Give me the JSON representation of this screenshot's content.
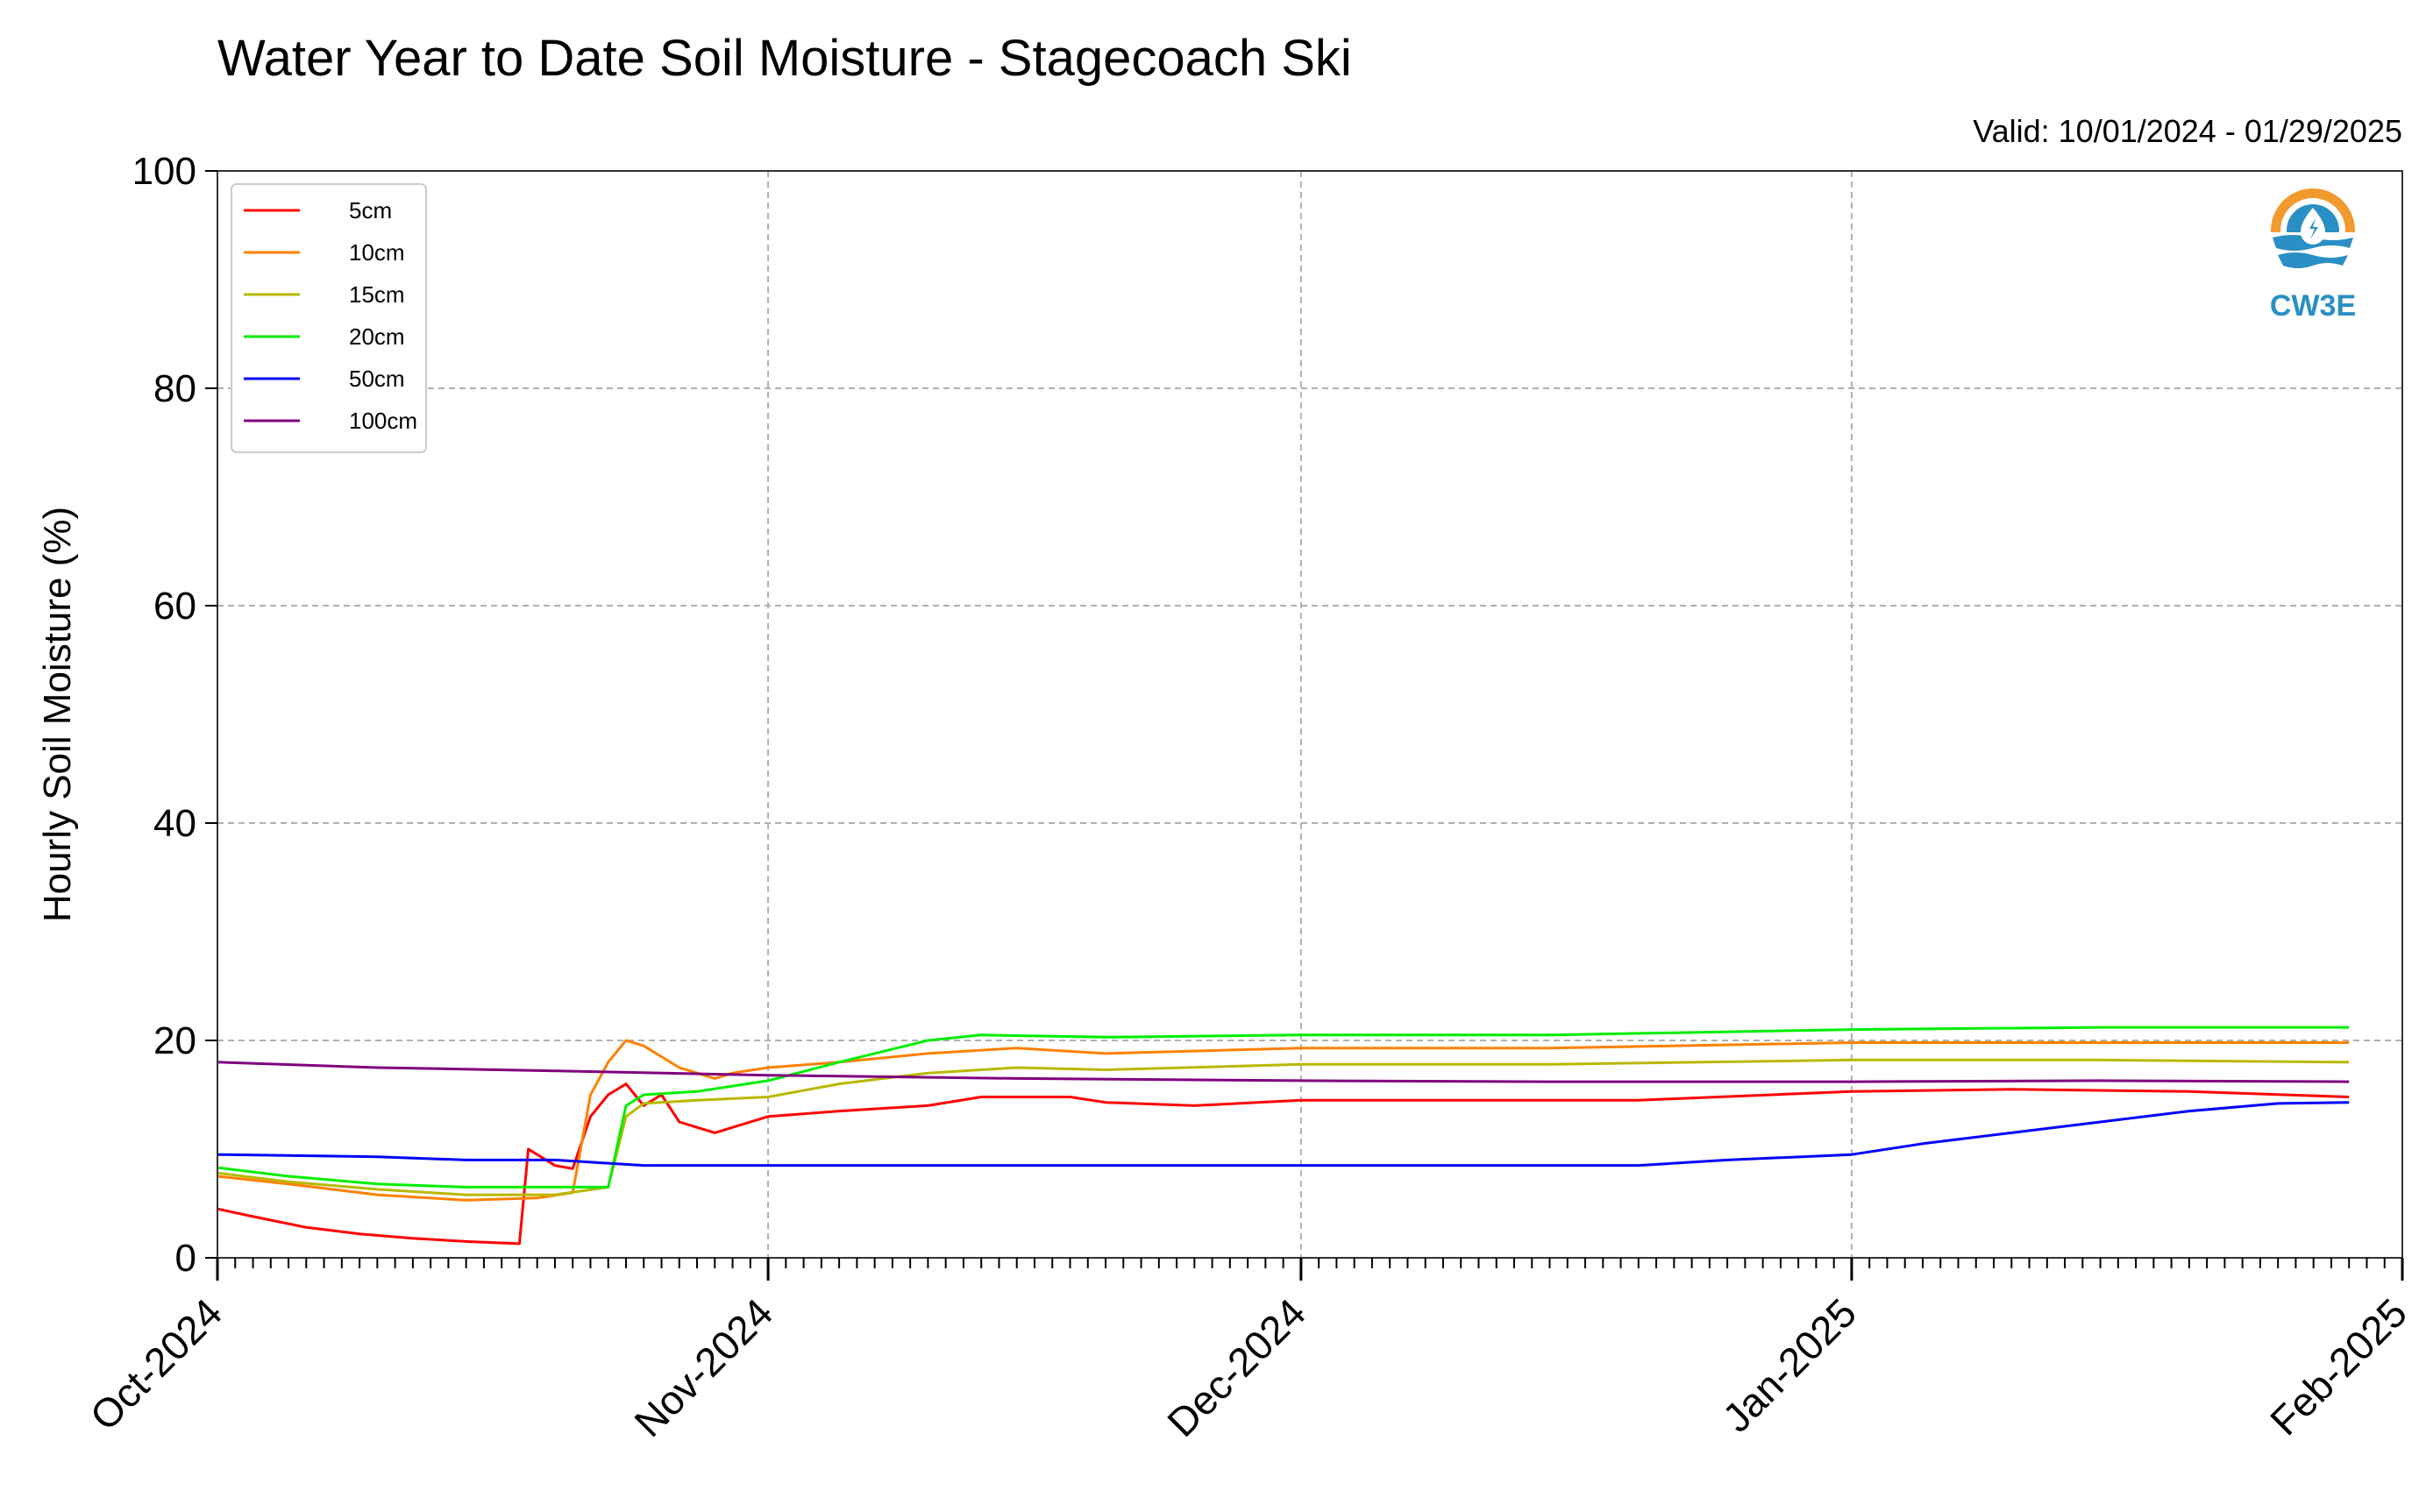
{
  "chart_data": {
    "type": "line",
    "title": "Water Year to Date Soil Moisture - Stagecoach Ski",
    "valid_text": "Valid: 10/01/2024 - 01/29/2025",
    "xlabel": "",
    "ylabel": "Hourly Soil Moisture (%)",
    "xlim": [
      "2024-10-01",
      "2025-02-01"
    ],
    "ylim": [
      0,
      100
    ],
    "yticks": [
      "0",
      "20",
      "40",
      "60",
      "80",
      "100"
    ],
    "xticks": [
      {
        "date": "2024-10-01",
        "label": "Oct-2024"
      },
      {
        "date": "2024-11-01",
        "label": "Nov-2024"
      },
      {
        "date": "2024-12-01",
        "label": "Dec-2024"
      },
      {
        "date": "2025-01-01",
        "label": "Jan-2025"
      },
      {
        "date": "2025-02-01",
        "label": "Feb-2025"
      }
    ],
    "grid": true,
    "legend_position": "top-left",
    "logo_text": "CW3E",
    "series": [
      {
        "name": "5cm",
        "color": "#ff0000",
        "points": [
          [
            "2024-10-01",
            4.5
          ],
          [
            "2024-10-03",
            3.8
          ],
          [
            "2024-10-06",
            2.8
          ],
          [
            "2024-10-09",
            2.2
          ],
          [
            "2024-10-12",
            1.8
          ],
          [
            "2024-10-15",
            1.5
          ],
          [
            "2024-10-18",
            1.3
          ],
          [
            "2024-10-18T12",
            10
          ],
          [
            "2024-10-19",
            9.5
          ],
          [
            "2024-10-20",
            8.5
          ],
          [
            "2024-10-21",
            8.2
          ],
          [
            "2024-10-22",
            13
          ],
          [
            "2024-10-23",
            15
          ],
          [
            "2024-10-24",
            16
          ],
          [
            "2024-10-25",
            14
          ],
          [
            "2024-10-26",
            15
          ],
          [
            "2024-10-27",
            12.5
          ],
          [
            "2024-10-28",
            12
          ],
          [
            "2024-10-29",
            11.5
          ],
          [
            "2024-10-30",
            12
          ],
          [
            "2024-11-01",
            13
          ],
          [
            "2024-11-05",
            13.5
          ],
          [
            "2024-11-10",
            14
          ],
          [
            "2024-11-13",
            14.8
          ],
          [
            "2024-11-18",
            14.8
          ],
          [
            "2024-11-20",
            14.3
          ],
          [
            "2024-11-25",
            14
          ],
          [
            "2024-12-01",
            14.5
          ],
          [
            "2024-12-10",
            14.5
          ],
          [
            "2024-12-20",
            14.5
          ],
          [
            "2025-01-01",
            15.3
          ],
          [
            "2025-01-10",
            15.5
          ],
          [
            "2025-01-20",
            15.3
          ],
          [
            "2025-01-29",
            14.8
          ]
        ]
      },
      {
        "name": "10cm",
        "color": "#ff8000",
        "points": [
          [
            "2024-10-01",
            7.5
          ],
          [
            "2024-10-05",
            6.8
          ],
          [
            "2024-10-10",
            5.8
          ],
          [
            "2024-10-15",
            5.3
          ],
          [
            "2024-10-19",
            5.5
          ],
          [
            "2024-10-21",
            6
          ],
          [
            "2024-10-22",
            15
          ],
          [
            "2024-10-23",
            18
          ],
          [
            "2024-10-24",
            20
          ],
          [
            "2024-10-25",
            19.5
          ],
          [
            "2024-10-26",
            18.5
          ],
          [
            "2024-10-27",
            17.5
          ],
          [
            "2024-10-28",
            17
          ],
          [
            "2024-10-29",
            16.5
          ],
          [
            "2024-10-30",
            17
          ],
          [
            "2024-11-01",
            17.5
          ],
          [
            "2024-11-05",
            18
          ],
          [
            "2024-11-10",
            18.8
          ],
          [
            "2024-11-15",
            19.3
          ],
          [
            "2024-11-20",
            18.8
          ],
          [
            "2024-12-01",
            19.3
          ],
          [
            "2024-12-15",
            19.3
          ],
          [
            "2025-01-01",
            19.8
          ],
          [
            "2025-01-15",
            19.8
          ],
          [
            "2025-01-29",
            19.8
          ]
        ]
      },
      {
        "name": "15cm",
        "color": "#b8b800",
        "points": [
          [
            "2024-10-01",
            7.8
          ],
          [
            "2024-10-05",
            7
          ],
          [
            "2024-10-10",
            6.3
          ],
          [
            "2024-10-15",
            5.8
          ],
          [
            "2024-10-20",
            5.8
          ],
          [
            "2024-10-23",
            6.5
          ],
          [
            "2024-10-24",
            13
          ],
          [
            "2024-10-25",
            14.2
          ],
          [
            "2024-10-28",
            14.5
          ],
          [
            "2024-11-01",
            14.8
          ],
          [
            "2024-11-05",
            16
          ],
          [
            "2024-11-10",
            17
          ],
          [
            "2024-11-15",
            17.5
          ],
          [
            "2024-11-20",
            17.3
          ],
          [
            "2024-12-01",
            17.8
          ],
          [
            "2024-12-15",
            17.8
          ],
          [
            "2025-01-01",
            18.2
          ],
          [
            "2025-01-15",
            18.2
          ],
          [
            "2025-01-29",
            18
          ]
        ]
      },
      {
        "name": "20cm",
        "color": "#00ee00",
        "points": [
          [
            "2024-10-01",
            8.3
          ],
          [
            "2024-10-05",
            7.5
          ],
          [
            "2024-10-10",
            6.8
          ],
          [
            "2024-10-15",
            6.5
          ],
          [
            "2024-10-20",
            6.5
          ],
          [
            "2024-10-23",
            6.5
          ],
          [
            "2024-10-24",
            14
          ],
          [
            "2024-10-25",
            15
          ],
          [
            "2024-10-28",
            15.3
          ],
          [
            "2024-11-01",
            16.3
          ],
          [
            "2024-11-05",
            18
          ],
          [
            "2024-11-10",
            20
          ],
          [
            "2024-11-13",
            20.5
          ],
          [
            "2024-11-20",
            20.3
          ],
          [
            "2024-12-01",
            20.5
          ],
          [
            "2024-12-15",
            20.5
          ],
          [
            "2025-01-01",
            21
          ],
          [
            "2025-01-15",
            21.2
          ],
          [
            "2025-01-29",
            21.2
          ]
        ]
      },
      {
        "name": "50cm",
        "color": "#0000ff",
        "points": [
          [
            "2024-10-01",
            9.5
          ],
          [
            "2024-10-10",
            9.3
          ],
          [
            "2024-10-15",
            9
          ],
          [
            "2024-10-20",
            9
          ],
          [
            "2024-10-25",
            8.5
          ],
          [
            "2024-11-01",
            8.5
          ],
          [
            "2024-11-15",
            8.5
          ],
          [
            "2024-12-01",
            8.5
          ],
          [
            "2024-12-10",
            8.5
          ],
          [
            "2024-12-20",
            8.5
          ],
          [
            "2024-12-25",
            9
          ],
          [
            "2025-01-01",
            9.5
          ],
          [
            "2025-01-05",
            10.5
          ],
          [
            "2025-01-10",
            11.5
          ],
          [
            "2025-01-15",
            12.5
          ],
          [
            "2025-01-20",
            13.5
          ],
          [
            "2025-01-25",
            14.2
          ],
          [
            "2025-01-29",
            14.3
          ]
        ]
      },
      {
        "name": "100cm",
        "color": "#800080",
        "points": [
          [
            "2024-10-01",
            18
          ],
          [
            "2024-10-10",
            17.5
          ],
          [
            "2024-10-20",
            17.2
          ],
          [
            "2024-11-01",
            16.8
          ],
          [
            "2024-11-15",
            16.5
          ],
          [
            "2024-12-01",
            16.3
          ],
          [
            "2024-12-15",
            16.2
          ],
          [
            "2025-01-01",
            16.2
          ],
          [
            "2025-01-15",
            16.3
          ],
          [
            "2025-01-29",
            16.2
          ]
        ]
      }
    ]
  }
}
